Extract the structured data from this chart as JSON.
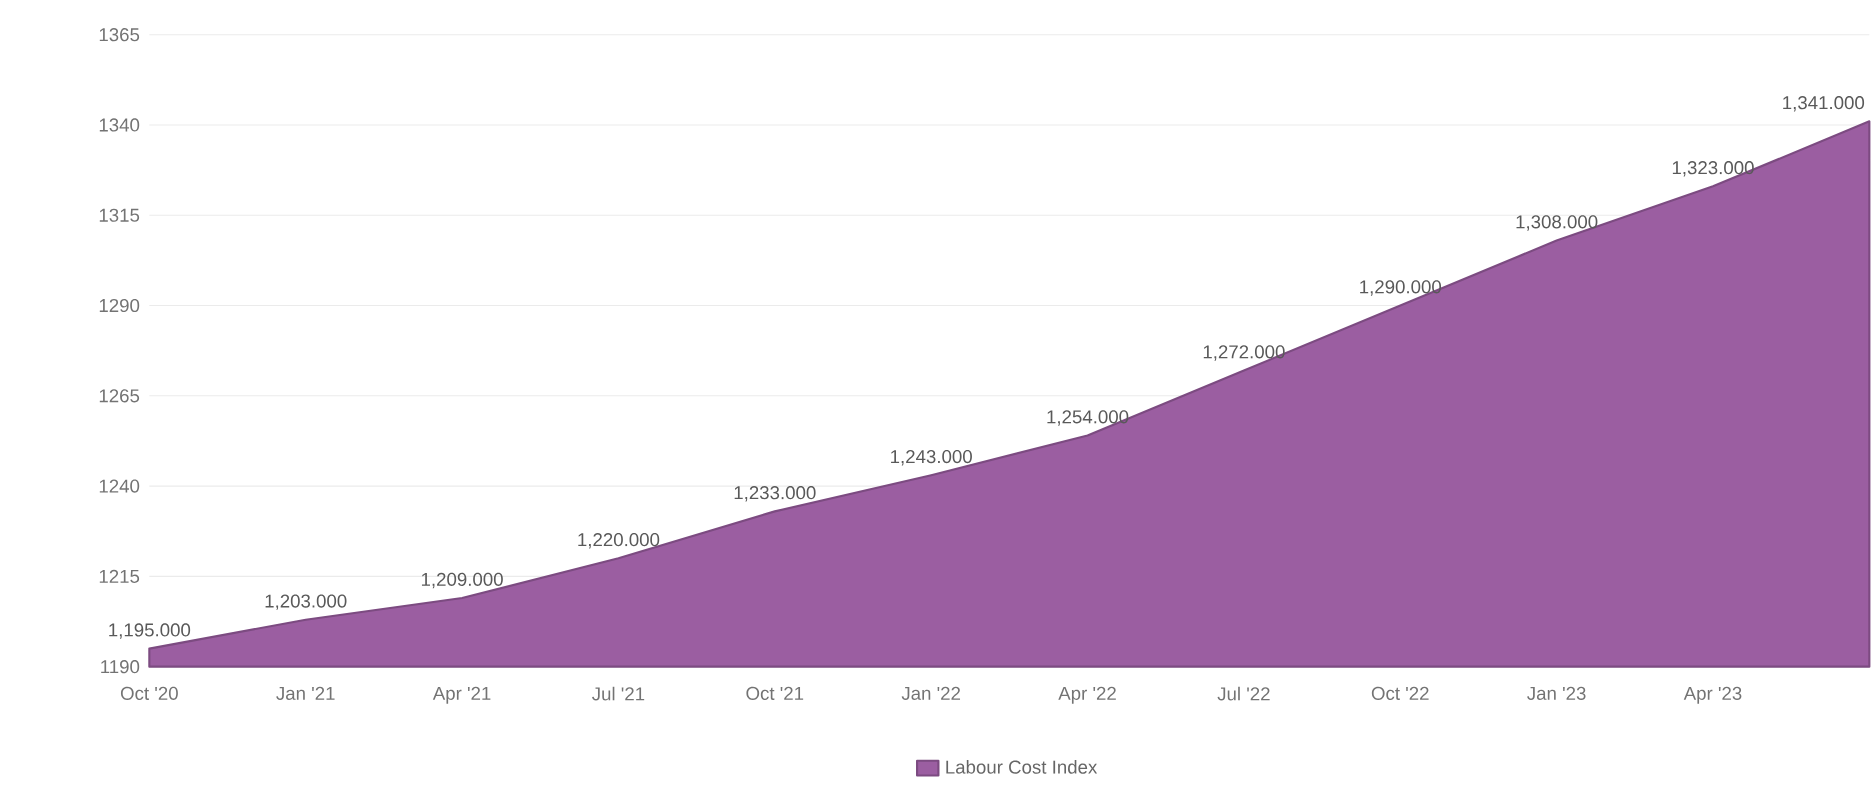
{
  "chart_data": {
    "type": "area",
    "categories": [
      "Oct '20",
      "Jan '21",
      "Apr '21",
      "Jul '21",
      "Oct '21",
      "Jan '22",
      "Apr '22",
      "Jul '22",
      "Oct '22",
      "Jan '23",
      "Apr '23",
      null
    ],
    "series": [
      {
        "name": "Labour Cost Index",
        "color": "#9b5ea1",
        "values": [
          1195,
          1203,
          1209,
          1220,
          1233,
          1243,
          1254,
          1272,
          1290,
          1308,
          1323,
          1341
        ],
        "value_labels": [
          "1,195.000",
          "1,203.000",
          "1,209.000",
          "1,220.000",
          "1,233.000",
          "1,243.000",
          "1,254.000",
          "1,272.000",
          "1,290.000",
          "1,308.000",
          "1,323.000",
          "1,341.000"
        ]
      }
    ],
    "ylim": [
      1190,
      1365
    ],
    "yticks": [
      1190,
      1215,
      1240,
      1265,
      1290,
      1315,
      1340,
      1365
    ],
    "grid": "y",
    "legend": "bottom"
  }
}
